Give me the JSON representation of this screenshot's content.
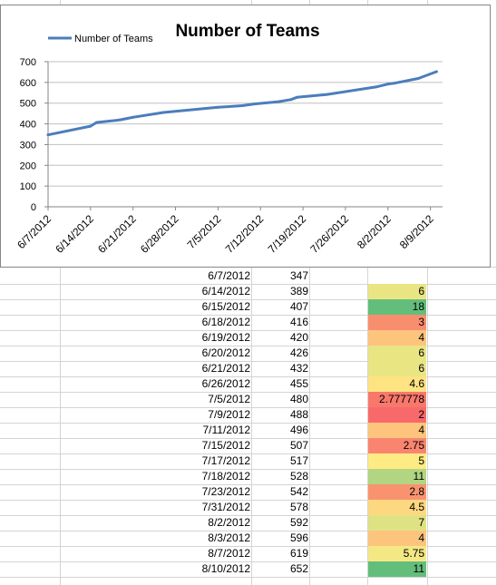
{
  "chart_data": {
    "type": "line",
    "title": "Number of Teams",
    "legend": {
      "position": "top-left",
      "entries": [
        "Number of Teams"
      ]
    },
    "series": [
      {
        "name": "Number of Teams",
        "color": "#4a7ebb",
        "points": [
          {
            "x": "2012-06-07",
            "y": 347
          },
          {
            "x": "2012-06-14",
            "y": 389
          },
          {
            "x": "2012-06-15",
            "y": 407
          },
          {
            "x": "2012-06-18",
            "y": 416
          },
          {
            "x": "2012-06-19",
            "y": 420
          },
          {
            "x": "2012-06-20",
            "y": 426
          },
          {
            "x": "2012-06-21",
            "y": 432
          },
          {
            "x": "2012-06-26",
            "y": 455
          },
          {
            "x": "2012-07-05",
            "y": 480
          },
          {
            "x": "2012-07-09",
            "y": 488
          },
          {
            "x": "2012-07-11",
            "y": 496
          },
          {
            "x": "2012-07-15",
            "y": 507
          },
          {
            "x": "2012-07-17",
            "y": 517
          },
          {
            "x": "2012-07-18",
            "y": 528
          },
          {
            "x": "2012-07-23",
            "y": 542
          },
          {
            "x": "2012-07-31",
            "y": 578
          },
          {
            "x": "2012-08-02",
            "y": 592
          },
          {
            "x": "2012-08-03",
            "y": 596
          },
          {
            "x": "2012-08-07",
            "y": 619
          },
          {
            "x": "2012-08-10",
            "y": 652
          }
        ]
      }
    ],
    "x_ticks": [
      "6/7/2012",
      "6/14/2012",
      "6/21/2012",
      "6/28/2012",
      "7/5/2012",
      "7/12/2012",
      "7/19/2012",
      "7/26/2012",
      "8/2/2012",
      "8/9/2012"
    ],
    "xrange": [
      "2012-06-07",
      "2012-08-11"
    ],
    "y_ticks": [
      0,
      100,
      200,
      300,
      400,
      500,
      600,
      700
    ],
    "ylim": [
      0,
      700
    ],
    "grid": true,
    "xlabel": "",
    "ylabel": ""
  },
  "table": {
    "rows": [
      {
        "date": "6/7/2012",
        "value": "347",
        "diff": "",
        "color": ""
      },
      {
        "date": "6/14/2012",
        "value": "389",
        "diff": "6",
        "color": "#e9e583"
      },
      {
        "date": "6/15/2012",
        "value": "407",
        "diff": "18",
        "color": "#63be7b"
      },
      {
        "date": "6/18/2012",
        "value": "416",
        "diff": "3",
        "color": "#f98e6f"
      },
      {
        "date": "6/19/2012",
        "value": "420",
        "diff": "4",
        "color": "#fdc47d"
      },
      {
        "date": "6/20/2012",
        "value": "426",
        "diff": "6",
        "color": "#e9e583"
      },
      {
        "date": "6/21/2012",
        "value": "432",
        "diff": "6",
        "color": "#e9e583"
      },
      {
        "date": "6/26/2012",
        "value": "455",
        "diff": "4.6",
        "color": "#fee382"
      },
      {
        "date": "7/5/2012",
        "value": "480",
        "diff": "2.777778",
        "color": "#f8786c"
      },
      {
        "date": "7/9/2012",
        "value": "488",
        "diff": "2",
        "color": "#f8696b"
      },
      {
        "date": "7/11/2012",
        "value": "496",
        "diff": "4",
        "color": "#fdc47d"
      },
      {
        "date": "7/15/2012",
        "value": "507",
        "diff": "2.75",
        "color": "#f98570"
      },
      {
        "date": "7/17/2012",
        "value": "517",
        "diff": "5",
        "color": "#feeb84"
      },
      {
        "date": "7/18/2012",
        "value": "528",
        "diff": "11",
        "color": "#b1d580"
      },
      {
        "date": "7/23/2012",
        "value": "542",
        "diff": "2.8",
        "color": "#f9936f"
      },
      {
        "date": "7/31/2012",
        "value": "578",
        "diff": "4.5",
        "color": "#fed880"
      },
      {
        "date": "8/2/2012",
        "value": "592",
        "diff": "7",
        "color": "#dfe283"
      },
      {
        "date": "8/3/2012",
        "value": "596",
        "diff": "4",
        "color": "#fdc47d"
      },
      {
        "date": "8/7/2012",
        "value": "619",
        "diff": "5.75",
        "color": "#f4e884"
      },
      {
        "date": "8/10/2012",
        "value": "652",
        "diff": "11",
        "color": "#63be7b"
      }
    ]
  }
}
